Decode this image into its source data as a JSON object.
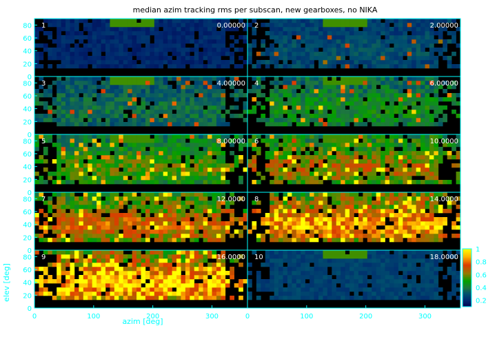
{
  "chart_data": {
    "type": "heatmap",
    "title": "median azim tracking rms per subscan, new gearboxes, no NIKA",
    "xlabel": "azim [deg]",
    "ylabel": "elev [deg]",
    "xlim": [
      0,
      360
    ],
    "ylim": [
      0,
      90
    ],
    "x_ticks": [
      "0",
      "100",
      "200",
      "300"
    ],
    "y_ticks": [
      "0",
      "20",
      "40",
      "60",
      "80"
    ],
    "panel_numbers": [
      "1",
      "2",
      "3",
      "4",
      "5",
      "6",
      "7",
      "8",
      "9",
      "10"
    ],
    "panel_values": [
      "0.00000",
      "2.00000",
      "4.00000",
      "6.00000",
      "8.00000",
      "10.0000",
      "12.0000",
      "14.0000",
      "16.0000",
      "18.0000"
    ],
    "colorbar": {
      "range": [
        0.1,
        1.0
      ],
      "tick_labels": [
        "0.2",
        "0.4",
        "0.6",
        "0.8",
        "1"
      ]
    },
    "colors": {
      "frame": "#00ffff",
      "text": "#00ffff",
      "background": "#000000"
    }
  }
}
